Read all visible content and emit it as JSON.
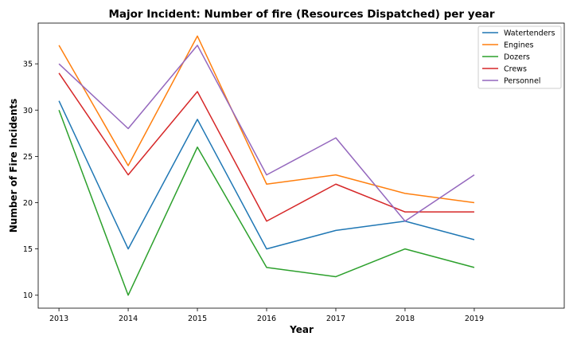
{
  "chart_data": {
    "type": "line",
    "title": "Major Incident: Number of fire (Resources Dispatched) per year",
    "xlabel": "Year",
    "ylabel": "Number of Fire Incidents",
    "x": [
      2013,
      2014,
      2015,
      2016,
      2017,
      2018,
      2019
    ],
    "x_tick_labels": [
      "2013",
      "2014",
      "2015",
      "2016",
      "2017",
      "2018",
      "2019"
    ],
    "y_ticks": [
      10,
      15,
      20,
      25,
      30,
      35
    ],
    "y_tick_labels": [
      "10",
      "15",
      "20",
      "25",
      "30",
      "35"
    ],
    "xlim": [
      2012.7,
      2020.3
    ],
    "ylim": [
      8.6,
      39.4
    ],
    "grid": false,
    "legend_position": "top-right",
    "series": [
      {
        "name": "Watertenders",
        "color": "#1f77b4",
        "values": [
          31,
          15,
          29,
          15,
          17,
          18,
          16
        ]
      },
      {
        "name": "Engines",
        "color": "#ff7f0e",
        "values": [
          37,
          24,
          38,
          22,
          23,
          21,
          20
        ]
      },
      {
        "name": "Dozers",
        "color": "#2ca02c",
        "values": [
          30,
          10,
          26,
          13,
          12,
          15,
          13
        ]
      },
      {
        "name": "Crews",
        "color": "#d62728",
        "values": [
          34,
          23,
          32,
          18,
          22,
          19,
          19
        ]
      },
      {
        "name": "Personnel",
        "color": "#9467bd",
        "values": [
          35,
          28,
          37,
          23,
          27,
          18,
          23
        ]
      }
    ]
  }
}
